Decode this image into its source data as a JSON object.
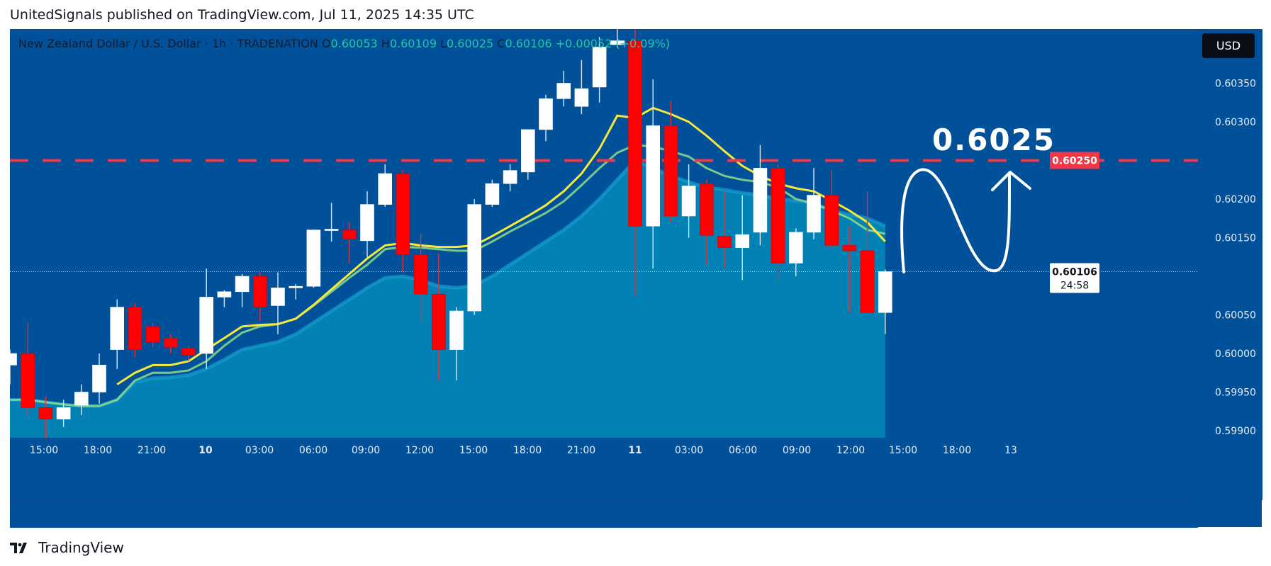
{
  "header": {
    "published_line": "UnitedSignals published on TradingView.com, Jul 11, 2025 14:35 UTC"
  },
  "legend": {
    "symbol": "New Zealand Dollar / U.S. Dollar · 1h · TRADENATION",
    "o_label": "O",
    "o_value": "0.60053",
    "h_label": "H",
    "h_value": "0.60109",
    "l_label": "L",
    "l_value": "0.60025",
    "c_label": "C",
    "c_value": "0.60106",
    "change": "+0.00052 (+0.09%)"
  },
  "currency_button": "USD",
  "footer": {
    "brand": "TradingView",
    "logo_icon": "tradingview-logo-icon"
  },
  "colors": {
    "background": "#01509a",
    "bull": "#ffffff",
    "bear": "#ff0000",
    "ema": "#f6e93a",
    "area": "#0289b9",
    "level_line": "#f23645",
    "level_label_bg": "#f23645"
  },
  "chart_data": {
    "type": "candlestick",
    "title": "",
    "y_tick_labels": [
      "0.60350",
      "0.60300",
      "0.60200",
      "0.60150",
      "0.60050",
      "0.60000",
      "0.59950",
      "0.59900"
    ],
    "x_tick_labels": [
      {
        "label": "15:00",
        "bold": false
      },
      {
        "label": "18:00",
        "bold": false
      },
      {
        "label": "21:00",
        "bold": false
      },
      {
        "label": "10",
        "bold": true
      },
      {
        "label": "03:00",
        "bold": false
      },
      {
        "label": "06:00",
        "bold": false
      },
      {
        "label": "09:00",
        "bold": false
      },
      {
        "label": "12:00",
        "bold": false
      },
      {
        "label": "15:00",
        "bold": false
      },
      {
        "label": "18:00",
        "bold": false
      },
      {
        "label": "21:00",
        "bold": false
      },
      {
        "label": "11",
        "bold": true
      },
      {
        "label": "03:00",
        "bold": false
      },
      {
        "label": "06:00",
        "bold": false
      },
      {
        "label": "09:00",
        "bold": false
      },
      {
        "label": "12:00",
        "bold": false
      },
      {
        "label": "15:00",
        "bold": false
      },
      {
        "label": "18:00",
        "bold": false
      },
      {
        "label": "13",
        "bold": false
      }
    ],
    "ylim": [
      0.5988,
      0.6045
    ],
    "candles": [
      {
        "o": 0.59985,
        "h": 0.60005,
        "l": 0.5996,
        "c": 0.6
      },
      {
        "o": 0.6,
        "h": 0.6004,
        "l": 0.5992,
        "c": 0.5993
      },
      {
        "o": 0.5993,
        "h": 0.59945,
        "l": 0.5989,
        "c": 0.59915
      },
      {
        "o": 0.59915,
        "h": 0.5994,
        "l": 0.59905,
        "c": 0.5993
      },
      {
        "o": 0.59933,
        "h": 0.5996,
        "l": 0.5992,
        "c": 0.5995
      },
      {
        "o": 0.5995,
        "h": 0.6,
        "l": 0.59935,
        "c": 0.59985
      },
      {
        "o": 0.60005,
        "h": 0.6007,
        "l": 0.5998,
        "c": 0.6006
      },
      {
        "o": 0.6006,
        "h": 0.60065,
        "l": 0.59995,
        "c": 0.60005
      },
      {
        "o": 0.60035,
        "h": 0.6004,
        "l": 0.60008,
        "c": 0.60015
      },
      {
        "o": 0.6002,
        "h": 0.60025,
        "l": 0.6,
        "c": 0.60008
      },
      {
        "o": 0.60007,
        "h": 0.6001,
        "l": 0.5999,
        "c": 0.59998
      },
      {
        "o": 0.6,
        "h": 0.6011,
        "l": 0.5998,
        "c": 0.60073
      },
      {
        "o": 0.60073,
        "h": 0.60082,
        "l": 0.6006,
        "c": 0.6008
      },
      {
        "o": 0.6008,
        "h": 0.60103,
        "l": 0.6006,
        "c": 0.601
      },
      {
        "o": 0.601,
        "h": 0.60105,
        "l": 0.60042,
        "c": 0.6006
      },
      {
        "o": 0.60062,
        "h": 0.60105,
        "l": 0.60025,
        "c": 0.60085
      },
      {
        "o": 0.60085,
        "h": 0.6009,
        "l": 0.6007,
        "c": 0.60087
      },
      {
        "o": 0.60087,
        "h": 0.6016,
        "l": 0.60085,
        "c": 0.6016
      },
      {
        "o": 0.6016,
        "h": 0.60195,
        "l": 0.60145,
        "c": 0.60161
      },
      {
        "o": 0.6016,
        "h": 0.6017,
        "l": 0.60117,
        "c": 0.60148
      },
      {
        "o": 0.60146,
        "h": 0.6021,
        "l": 0.60125,
        "c": 0.60193
      },
      {
        "o": 0.60193,
        "h": 0.60245,
        "l": 0.6019,
        "c": 0.60233
      },
      {
        "o": 0.60233,
        "h": 0.60238,
        "l": 0.60105,
        "c": 0.60128
      },
      {
        "o": 0.60128,
        "h": 0.60155,
        "l": 0.6004,
        "c": 0.60077
      },
      {
        "o": 0.60077,
        "h": 0.6013,
        "l": 0.59965,
        "c": 0.60005
      },
      {
        "o": 0.60005,
        "h": 0.6006,
        "l": 0.59965,
        "c": 0.60055
      },
      {
        "o": 0.60055,
        "h": 0.602,
        "l": 0.6005,
        "c": 0.60193
      },
      {
        "o": 0.60193,
        "h": 0.60225,
        "l": 0.6019,
        "c": 0.6022
      },
      {
        "o": 0.6022,
        "h": 0.60245,
        "l": 0.6021,
        "c": 0.60237
      },
      {
        "o": 0.60235,
        "h": 0.6029,
        "l": 0.60225,
        "c": 0.6029
      },
      {
        "o": 0.6029,
        "h": 0.60335,
        "l": 0.60275,
        "c": 0.6033
      },
      {
        "o": 0.6033,
        "h": 0.60366,
        "l": 0.6032,
        "c": 0.6035
      },
      {
        "o": 0.6032,
        "h": 0.6038,
        "l": 0.6031,
        "c": 0.60343
      },
      {
        "o": 0.60345,
        "h": 0.6041,
        "l": 0.60325,
        "c": 0.60397
      },
      {
        "o": 0.604,
        "h": 0.60436,
        "l": 0.60396,
        "c": 0.60405
      },
      {
        "o": 0.60405,
        "h": 0.6042,
        "l": 0.60075,
        "c": 0.60165
      },
      {
        "o": 0.60165,
        "h": 0.60355,
        "l": 0.6011,
        "c": 0.60295
      },
      {
        "o": 0.60295,
        "h": 0.60327,
        "l": 0.6017,
        "c": 0.60178
      },
      {
        "o": 0.60178,
        "h": 0.60245,
        "l": 0.6015,
        "c": 0.60217
      },
      {
        "o": 0.6022,
        "h": 0.60225,
        "l": 0.60115,
        "c": 0.60153
      },
      {
        "o": 0.60152,
        "h": 0.6021,
        "l": 0.6011,
        "c": 0.60137
      },
      {
        "o": 0.60137,
        "h": 0.60205,
        "l": 0.60095,
        "c": 0.60154
      },
      {
        "o": 0.60157,
        "h": 0.6027,
        "l": 0.6014,
        "c": 0.6024
      },
      {
        "o": 0.6024,
        "h": 0.60245,
        "l": 0.60095,
        "c": 0.60117
      },
      {
        "o": 0.60117,
        "h": 0.60162,
        "l": 0.601,
        "c": 0.60157
      },
      {
        "o": 0.60157,
        "h": 0.6024,
        "l": 0.60148,
        "c": 0.60205
      },
      {
        "o": 0.60205,
        "h": 0.60238,
        "l": 0.60135,
        "c": 0.6014
      },
      {
        "o": 0.6014,
        "h": 0.60165,
        "l": 0.60053,
        "c": 0.60133
      },
      {
        "o": 0.60133,
        "h": 0.6021,
        "l": 0.60055,
        "c": 0.60053
      },
      {
        "o": 0.60053,
        "h": 0.60109,
        "l": 0.60025,
        "c": 0.60106
      }
    ],
    "ema_series": [
      0.5994,
      0.5994,
      0.59937,
      0.59934,
      0.59932,
      0.59932,
      0.5994,
      0.59965,
      0.59975,
      0.59975,
      0.59978,
      0.5999,
      0.6001,
      0.60027,
      0.60035,
      0.60038,
      0.60045,
      0.60062,
      0.6008,
      0.60098,
      0.60115,
      0.60135,
      0.60138,
      0.60137,
      0.60135,
      0.60133,
      0.60133,
      0.60145,
      0.60158,
      0.6017,
      0.60182,
      0.60197,
      0.60218,
      0.6024,
      0.6026,
      0.6027,
      0.60268,
      0.60262,
      0.60255,
      0.6024,
      0.6023,
      0.60225,
      0.60222,
      0.60215,
      0.602,
      0.60194,
      0.60185,
      0.60175,
      0.6016,
      0.60155
    ],
    "area_series": [
      0.5994,
      0.5994,
      0.59937,
      0.59934,
      0.59932,
      0.59932,
      0.5994,
      0.59963,
      0.59968,
      0.59969,
      0.59972,
      0.5998,
      0.59992,
      0.60005,
      0.6001,
      0.60015,
      0.60025,
      0.6004,
      0.60055,
      0.6007,
      0.60085,
      0.60098,
      0.601,
      0.60095,
      0.60087,
      0.60085,
      0.60088,
      0.601,
      0.60115,
      0.6013,
      0.60145,
      0.6016,
      0.60178,
      0.602,
      0.60225,
      0.6025,
      0.6024,
      0.6023,
      0.60222,
      0.60215,
      0.60212,
      0.60208,
      0.60205,
      0.602,
      0.60198,
      0.60195,
      0.60185,
      0.6018,
      0.60175,
      0.60165
    ],
    "yellow_ma_series": [
      null,
      null,
      null,
      null,
      null,
      null,
      0.5996,
      0.59975,
      0.59985,
      0.59985,
      0.5999,
      0.60005,
      0.6002,
      0.60035,
      0.60037,
      0.60038,
      0.60045,
      0.60063,
      0.60083,
      0.60103,
      0.60123,
      0.6014,
      0.60143,
      0.6014,
      0.60138,
      0.60138,
      0.6014,
      0.60152,
      0.60165,
      0.60178,
      0.60192,
      0.6021,
      0.60233,
      0.60265,
      0.60308,
      0.60305,
      0.60318,
      0.6031,
      0.603,
      0.60282,
      0.60262,
      0.60243,
      0.6023,
      0.6022,
      0.60214,
      0.6021,
      0.60198,
      0.60185,
      0.6017,
      0.60145
    ],
    "horizontal_level": {
      "value": 0.6025,
      "label": "0.60250"
    },
    "annotation_text": "0.6025",
    "current_price": {
      "value": 0.60106,
      "label": "0.60106",
      "countdown": "24:58"
    },
    "grid": false
  }
}
